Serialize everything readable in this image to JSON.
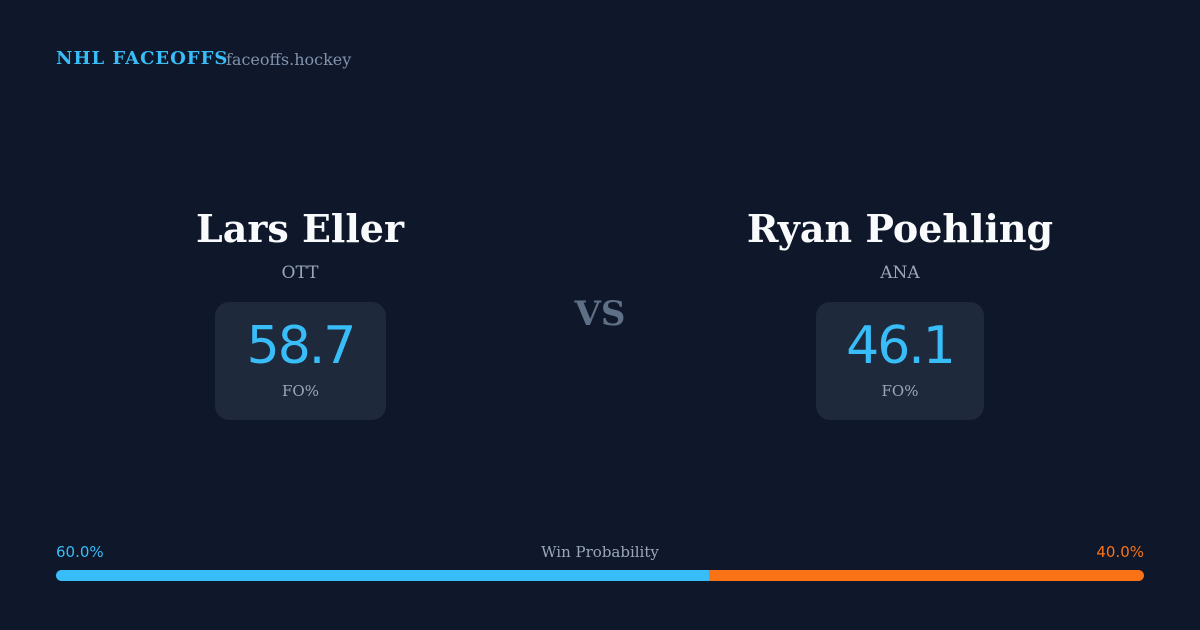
{
  "header": {
    "brand": "NHL FACEOFFS",
    "site": "faceoffs.hockey"
  },
  "players": [
    {
      "name": "Lars Eller",
      "team": "OTT",
      "fo_pct": 58.7,
      "fo_label": "FO%"
    },
    {
      "name": "Ryan Poehling",
      "team": "ANA",
      "fo_pct": 46.1,
      "fo_label": "FO%"
    }
  ],
  "versus": "VS",
  "win_probability": {
    "title": "Win Probability",
    "left": {
      "value": 60,
      "label": "60.0%",
      "color": "#38bdf8"
    },
    "right": {
      "value": 40,
      "label": "40.0%",
      "color": "#f97316"
    }
  }
}
